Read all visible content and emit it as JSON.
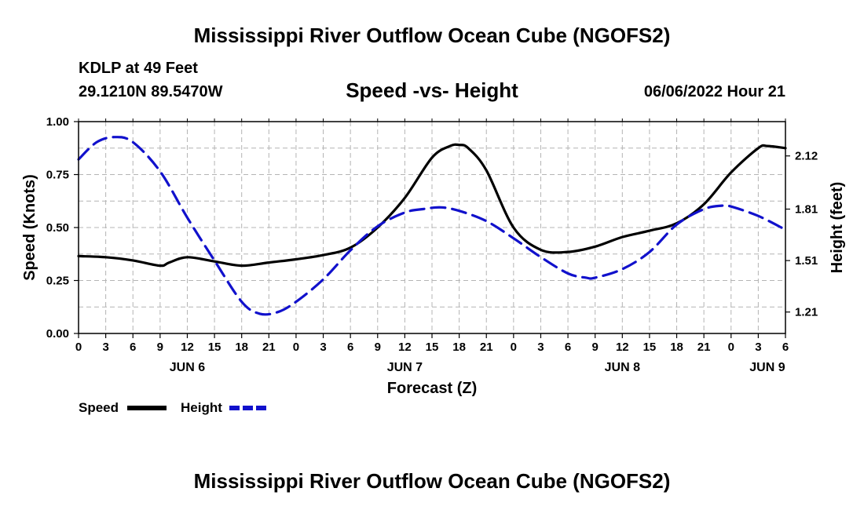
{
  "header": {
    "title": "Mississippi River Outflow Ocean Cube (NGOFS2)",
    "station": "KDLP at 49 Feet",
    "coords": "29.1210N  89.5470W",
    "subtitle": "Speed -vs- Height",
    "datetime": "06/06/2022 Hour 21"
  },
  "footer": {
    "title": "Mississippi River Outflow Ocean Cube (NGOFS2)"
  },
  "chart_data": {
    "type": "line",
    "title": "Speed -vs- Height",
    "xlabel": "Forecast (Z)",
    "ylabel": "Speed (Knots)",
    "y2label": "Height (feet)",
    "x_unit": "forecast hours from JUN 6 00Z",
    "xlim": [
      0,
      78
    ],
    "ylim": [
      0,
      1.0
    ],
    "y2lim": [
      1.085,
      2.32
    ],
    "x_tick_step": 3,
    "x_tick_labels": [
      "0",
      "3",
      "6",
      "9",
      "12",
      "15",
      "18",
      "21",
      "0",
      "3",
      "6",
      "9",
      "12",
      "15",
      "18",
      "21",
      "0",
      "3",
      "6",
      "9",
      "12",
      "15",
      "18",
      "21",
      "0",
      "3",
      "6"
    ],
    "y_ticks": [
      0.0,
      0.25,
      0.5,
      0.75,
      1.0
    ],
    "y_tick_labels": [
      "0.00",
      "0.25",
      "0.50",
      "0.75",
      "1.00"
    ],
    "y2_ticks": [
      1.21,
      1.51,
      1.81,
      2.12
    ],
    "y2_tick_labels": [
      "1.21",
      "1.51",
      "1.81",
      "2.12"
    ],
    "day_labels": [
      {
        "label": "JUN 6",
        "x": 12
      },
      {
        "label": "JUN 7",
        "x": 36
      },
      {
        "label": "JUN 8",
        "x": 60
      },
      {
        "label": "JUN 9",
        "x": 76
      }
    ],
    "series": [
      {
        "name": "Speed",
        "axis": "left",
        "color": "#000000",
        "dash": "solid",
        "x": [
          0,
          3,
          6,
          9,
          10,
          12,
          15,
          18,
          21,
          24,
          27,
          30,
          33,
          36,
          39,
          41,
          42,
          43,
          45,
          48,
          51,
          54,
          57,
          60,
          63,
          66,
          69,
          72,
          75,
          76,
          78
        ],
        "y": [
          0.365,
          0.36,
          0.345,
          0.32,
          0.335,
          0.36,
          0.34,
          0.32,
          0.335,
          0.35,
          0.37,
          0.405,
          0.5,
          0.64,
          0.83,
          0.885,
          0.89,
          0.875,
          0.77,
          0.5,
          0.395,
          0.385,
          0.41,
          0.455,
          0.485,
          0.52,
          0.61,
          0.76,
          0.875,
          0.885,
          0.875
        ]
      },
      {
        "name": "Height",
        "axis": "right",
        "color": "#1111cc",
        "dash": "dashed",
        "x": [
          0,
          2,
          4,
          6,
          9,
          12,
          15,
          18,
          20,
          22,
          24,
          27,
          30,
          33,
          36,
          38,
          40,
          42,
          45,
          48,
          51,
          54,
          56,
          57,
          60,
          63,
          66,
          69,
          71,
          72,
          75,
          78
        ],
        "y": [
          2.1,
          2.2,
          2.23,
          2.2,
          2.03,
          1.76,
          1.51,
          1.27,
          1.2,
          1.21,
          1.27,
          1.4,
          1.57,
          1.71,
          1.79,
          1.81,
          1.82,
          1.8,
          1.74,
          1.64,
          1.53,
          1.435,
          1.41,
          1.41,
          1.46,
          1.56,
          1.72,
          1.81,
          1.83,
          1.825,
          1.77,
          1.69
        ]
      }
    ],
    "legend": {
      "placement": "bottom-left",
      "speed_label": "Speed",
      "height_label": "Height"
    },
    "grid": true
  }
}
